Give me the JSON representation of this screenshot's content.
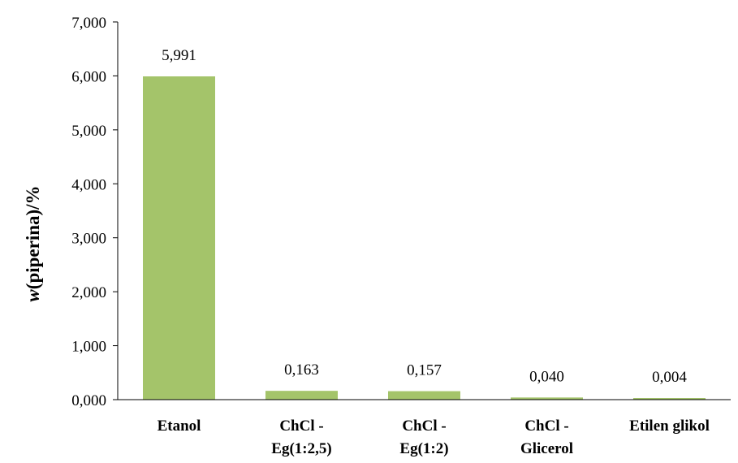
{
  "chart_data": {
    "type": "bar",
    "categories": [
      [
        "Etanol"
      ],
      [
        "ChCl -",
        "Eg(1:2,5)"
      ],
      [
        "ChCl -",
        "Eg(1:2)"
      ],
      [
        "ChCl -",
        "Glicerol"
      ],
      [
        "Etilen glikol"
      ]
    ],
    "values": [
      5.991,
      0.163,
      0.157,
      0.04,
      0.004
    ],
    "data_labels": [
      "5,991",
      "0,163",
      "0,157",
      "0,040",
      "0,004"
    ],
    "ylabel_italic": "w",
    "ylabel_rest": "(piperina)/%",
    "ylim": [
      0,
      7
    ],
    "yticks": [
      "0,000",
      "1,000",
      "2,000",
      "3,000",
      "4,000",
      "5,000",
      "6,000",
      "7,000"
    ],
    "bar_color": "#a4c46a",
    "grid": false,
    "legend": "none"
  }
}
